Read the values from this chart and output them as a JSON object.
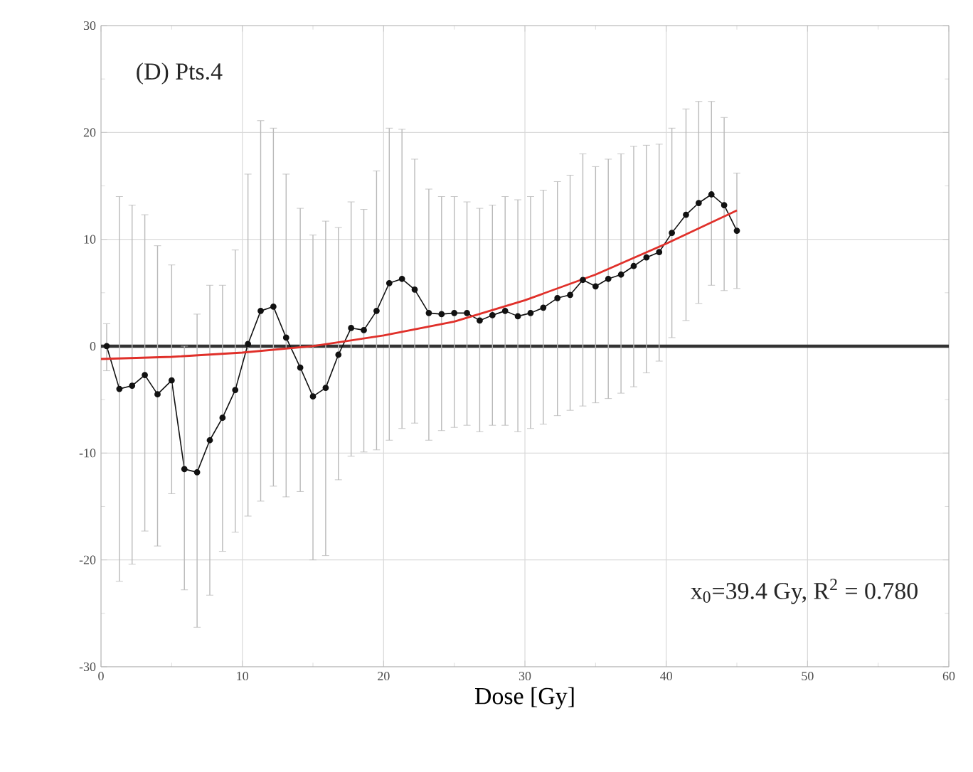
{
  "chart_data": {
    "type": "line",
    "xlabel": "Dose [Gy]",
    "annotations": [
      "(D) Pts.4",
      "x$_{0}$=39.4 Gy, R$^{2}$ = 0.780"
    ],
    "xlim": [
      0,
      60
    ],
    "ylim": [
      -30,
      30
    ],
    "xticks": [
      0,
      10,
      20,
      30,
      40,
      50,
      60
    ],
    "yticks": [
      -30,
      -20,
      -10,
      0,
      10,
      20,
      30
    ],
    "grid": true,
    "marker": "circle",
    "line_style": "solid",
    "ref_lines": [
      {
        "axis": "y",
        "value": 0,
        "color": "#333333"
      }
    ],
    "series": [
      {
        "color": "#111111",
        "x": [
          0.4,
          1.3,
          2.2,
          3.1,
          4.0,
          5.0,
          5.9,
          6.8,
          7.7,
          8.6,
          9.5,
          10.4,
          11.3,
          12.2,
          13.1,
          14.1,
          15.0,
          15.9,
          16.8,
          17.7,
          18.6,
          19.5,
          20.4,
          21.3,
          22.2,
          23.2,
          24.1,
          25.0,
          25.9,
          26.8,
          27.7,
          28.6,
          29.5,
          30.4,
          31.3,
          32.3,
          33.2,
          34.1,
          35.0,
          35.9,
          36.8,
          37.7,
          38.6,
          39.5,
          40.4,
          41.4,
          42.3,
          43.2,
          44.1,
          45.0
        ],
        "values": [
          0.0,
          -4.0,
          -3.7,
          -2.7,
          -4.5,
          -3.2,
          -11.5,
          -11.8,
          -8.8,
          -6.7,
          -4.1,
          0.2,
          3.3,
          3.7,
          0.8,
          -2.0,
          -4.7,
          -3.9,
          -0.8,
          1.7,
          1.5,
          3.3,
          5.9,
          6.3,
          5.3,
          3.1,
          3.0,
          3.1,
          3.1,
          2.4,
          2.9,
          3.3,
          2.8,
          3.1,
          3.6,
          4.5,
          4.8,
          6.2,
          5.6,
          6.3,
          6.7,
          7.5,
          8.3,
          8.8,
          10.6,
          12.3,
          13.4,
          14.2,
          13.2,
          10.8
        ],
        "errors": [
          [
            -2.3,
            2.1
          ],
          [
            -22,
            14.0
          ],
          [
            -20.4,
            13.2
          ],
          [
            -17.3,
            12.3
          ],
          [
            -18.7,
            9.4
          ],
          [
            -13.8,
            7.6
          ],
          [
            -22.8,
            0.0
          ],
          [
            -26.3,
            3.0
          ],
          [
            -23.3,
            5.7
          ],
          [
            -19.2,
            5.7
          ],
          [
            -17.4,
            9.0
          ],
          [
            -15.9,
            16.1
          ],
          [
            -14.5,
            21.1
          ],
          [
            -13.1,
            20.4
          ],
          [
            -14.1,
            16.1
          ],
          [
            -13.6,
            12.9
          ],
          [
            -20.0,
            10.4
          ],
          [
            -19.6,
            11.7
          ],
          [
            -12.5,
            11.1
          ],
          [
            -10.3,
            13.5
          ],
          [
            -9.9,
            12.8
          ],
          [
            -9.7,
            16.4
          ],
          [
            -8.8,
            20.4
          ],
          [
            -7.7,
            20.3
          ],
          [
            -7.2,
            17.5
          ],
          [
            -8.8,
            14.7
          ],
          [
            -7.9,
            14.0
          ],
          [
            -7.6,
            14.0
          ],
          [
            -7.4,
            13.5
          ],
          [
            -8.0,
            12.9
          ],
          [
            -7.4,
            13.2
          ],
          [
            -7.4,
            14.0
          ],
          [
            -8.0,
            13.7
          ],
          [
            -7.7,
            14.0
          ],
          [
            -7.3,
            14.6
          ],
          [
            -6.5,
            15.4
          ],
          [
            -6.0,
            16.0
          ],
          [
            -5.6,
            18.0
          ],
          [
            -5.3,
            16.8
          ],
          [
            -4.9,
            17.5
          ],
          [
            -4.4,
            18.0
          ],
          [
            -3.8,
            18.7
          ],
          [
            -2.5,
            18.8
          ],
          [
            -1.4,
            18.9
          ],
          [
            0.8,
            20.4
          ],
          [
            2.4,
            22.2
          ],
          [
            4.0,
            22.9
          ],
          [
            5.7,
            22.9
          ],
          [
            5.2,
            21.4
          ],
          [
            5.4,
            16.2
          ]
        ]
      },
      {
        "type": "line",
        "color": "#e0302a",
        "marker": "none",
        "x": [
          0,
          5,
          10,
          15,
          20,
          25,
          30,
          35,
          40,
          45
        ],
        "values": [
          -1.2,
          -1.0,
          -0.6,
          0.0,
          1.0,
          2.3,
          4.3,
          6.7,
          9.6,
          12.7
        ]
      }
    ]
  }
}
